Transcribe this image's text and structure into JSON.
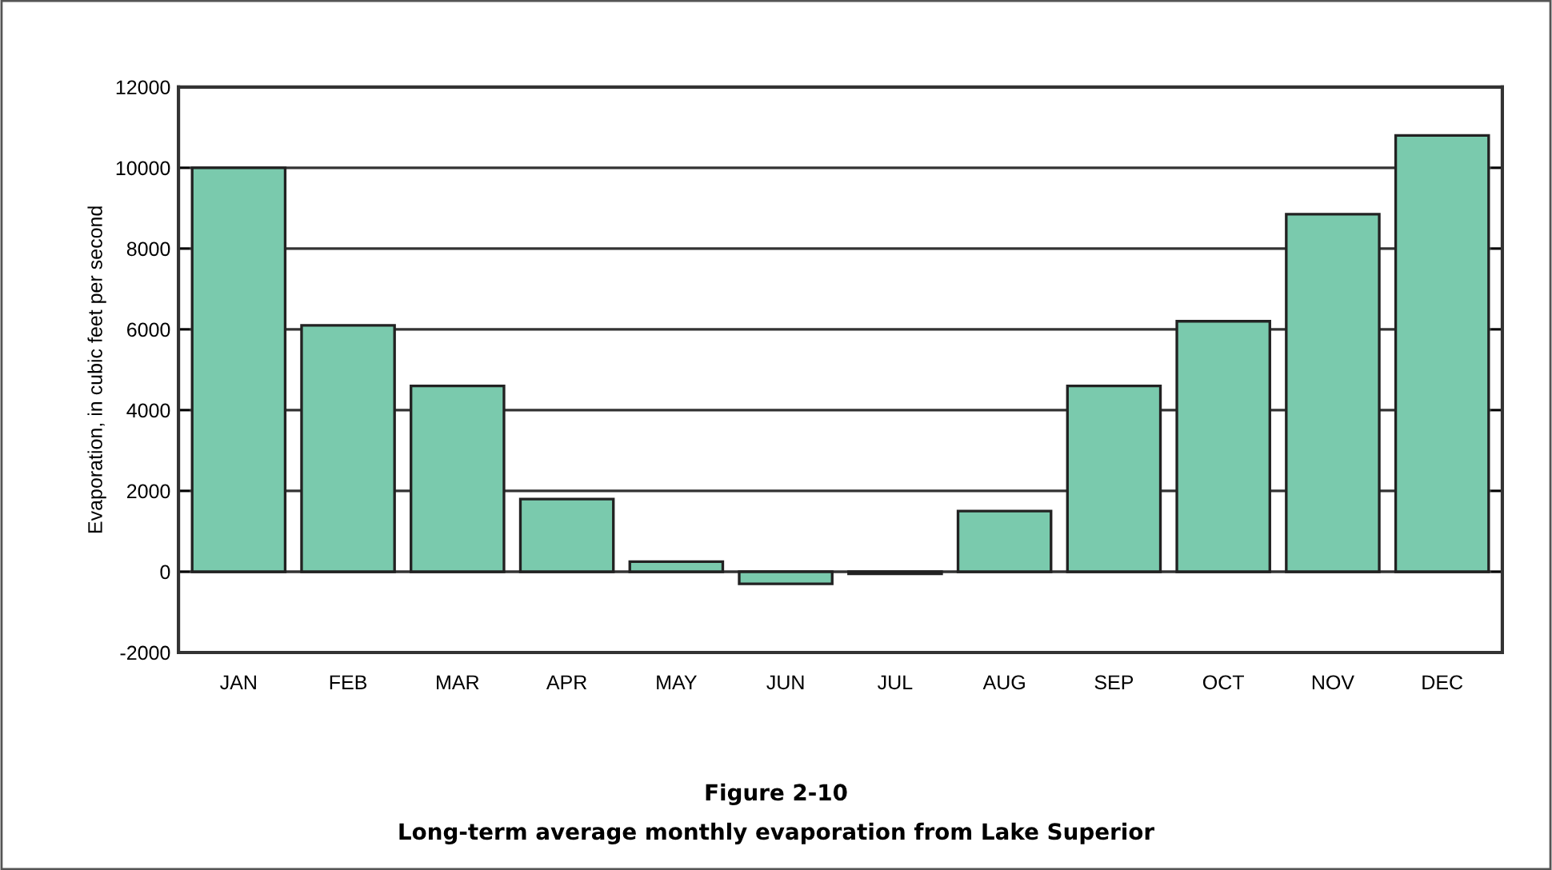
{
  "chart_data": {
    "type": "bar",
    "title": "Figure 2-10",
    "subtitle": "Long-term average monthly evaporation from Lake Superior",
    "ylabel": "Evaporation, in cubic feet per second",
    "categories": [
      "JAN",
      "FEB",
      "MAR",
      "APR",
      "MAY",
      "JUN",
      "JUL",
      "AUG",
      "SEP",
      "OCT",
      "NOV",
      "DEC"
    ],
    "values": [
      10000,
      6100,
      4600,
      1800,
      250,
      -300,
      -50,
      1500,
      4600,
      6200,
      8850,
      10800
    ],
    "color": "#7acaad",
    "ylim": [
      -2000,
      12000
    ],
    "yticks": [
      -2000,
      0,
      2000,
      4000,
      6000,
      8000,
      10000,
      12000
    ],
    "grid": "y"
  }
}
